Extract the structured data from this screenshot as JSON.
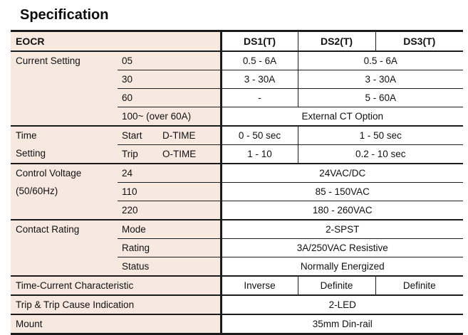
{
  "page": {
    "title": "Specification"
  },
  "colors": {
    "label_bg": "#f7e8e0",
    "border": "#1b1b1b",
    "value_bg": "#ffffff"
  },
  "table": {
    "header": {
      "col0": "EOCR",
      "ds1": "DS1(T)",
      "ds2": "DS2(T)",
      "ds3": "DS3(T)"
    },
    "current_setting": {
      "label": "Current Setting",
      "rows": [
        {
          "sub": "05",
          "ds1": "0.5 - 6A",
          "ds23": "0.5 - 6A"
        },
        {
          "sub": "30",
          "ds1": "3 - 30A",
          "ds23": "3 - 30A"
        },
        {
          "sub": "60",
          "ds1": "-",
          "ds23": "5 - 60A"
        },
        {
          "sub": "100~ (over 60A)",
          "all": "External CT Option"
        }
      ]
    },
    "time_setting": {
      "label_line1": "Time",
      "label_line2": "Setting",
      "rows": [
        {
          "sub1": "Start",
          "sub2": "D-TIME",
          "ds1": "0 - 50 sec",
          "ds23": "1 - 50 sec"
        },
        {
          "sub1": "Trip",
          "sub2": "O-TIME",
          "ds1": "1 - 10",
          "ds23": "0.2 - 10 sec"
        }
      ]
    },
    "control_voltage": {
      "label_line1": "Control Voltage",
      "label_line2": "(50/60Hz)",
      "rows": [
        {
          "sub": "24",
          "all": "24VAC/DC"
        },
        {
          "sub": "110",
          "all": "85 - 150VAC"
        },
        {
          "sub": "220",
          "all": "180 - 260VAC"
        }
      ]
    },
    "contact_rating": {
      "label": "Contact Rating",
      "rows": [
        {
          "sub": "Mode",
          "all": "2-SPST"
        },
        {
          "sub": "Rating",
          "all": "3A/250VAC Resistive"
        },
        {
          "sub": "Status",
          "all": "Normally Energized"
        }
      ]
    },
    "time_current": {
      "label": "Time-Current Characteristic",
      "ds1": "Inverse",
      "ds2": "Definite",
      "ds3": "Definite"
    },
    "trip_indication": {
      "label": "Trip & Trip Cause Indication",
      "all": "2-LED"
    },
    "mount": {
      "label": "Mount",
      "all": "35mm Din-rail"
    }
  }
}
